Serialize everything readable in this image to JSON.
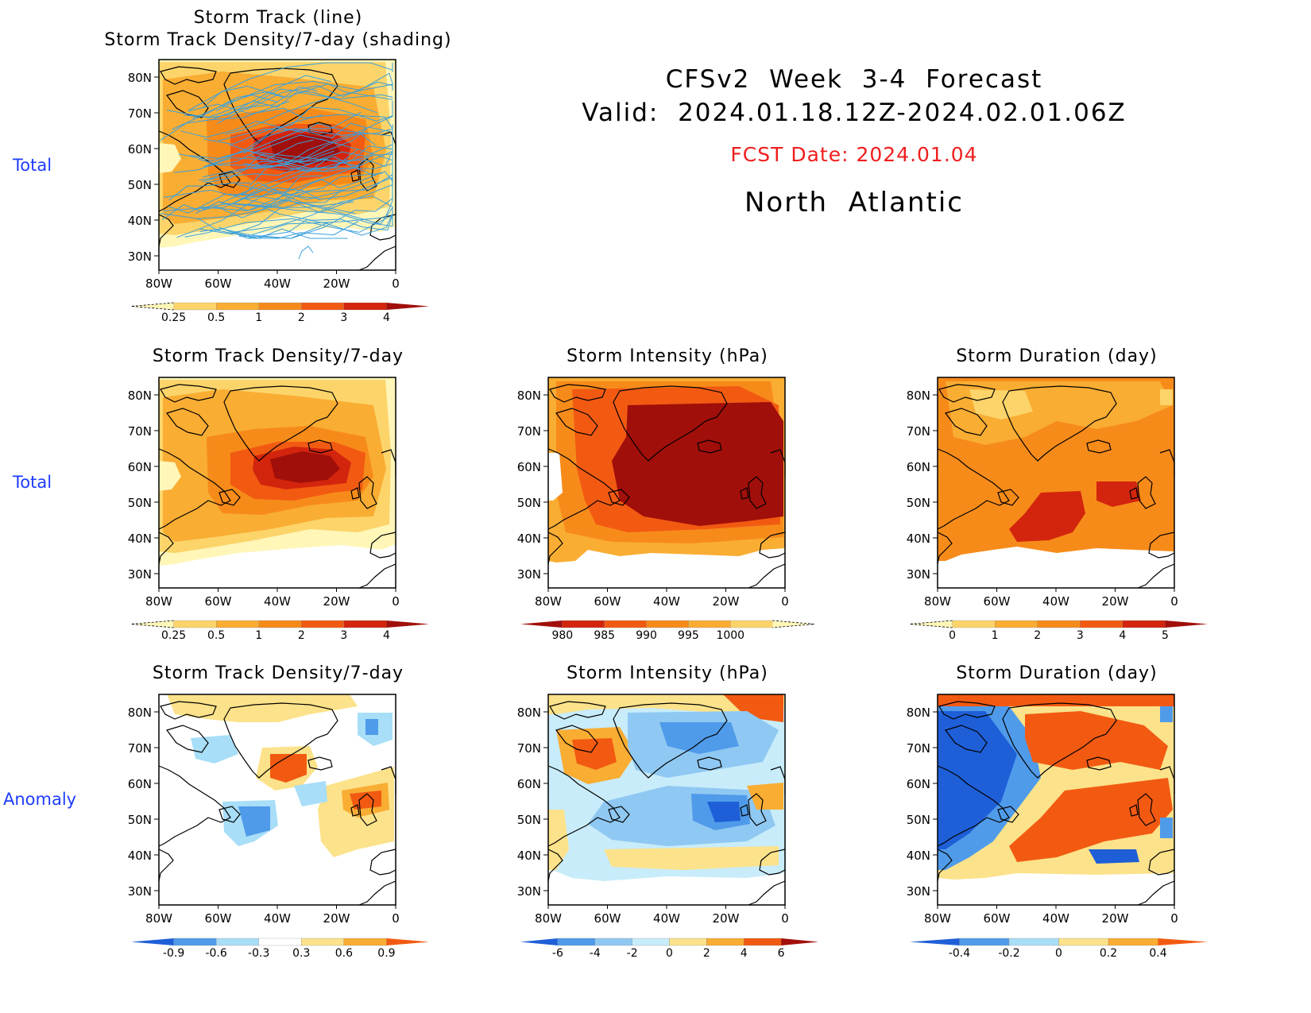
{
  "header": {
    "line1": "CFSv2  Week  3-4  Forecast",
    "line2": "Valid:  2024.01.18.12Z-2024.02.01.06Z",
    "fcst": "FCST Date: 2024.01.04",
    "region": "North  Atlantic"
  },
  "row_labels": {
    "top": "Total",
    "middle": "Total",
    "bottom": "Anomaly"
  },
  "axes": {
    "lat": [
      "80N",
      "70N",
      "60N",
      "50N",
      "40N",
      "30N"
    ],
    "lon": [
      "80W",
      "60W",
      "40W",
      "20W",
      "0"
    ]
  },
  "panels": {
    "p0": {
      "title1": "Storm Track (line)",
      "title2": "Storm Track Density/7-day (shading)"
    },
    "p1": {
      "title": "Storm Track Density/7-day"
    },
    "p2": {
      "title": "Storm Intensity (hPa)"
    },
    "p3": {
      "title": "Storm Duration (day)"
    },
    "p4": {
      "title": "Storm Track Density/7-day"
    },
    "p5": {
      "title": "Storm Intensity (hPa)"
    },
    "p6": {
      "title": "Storm Duration (day)"
    }
  },
  "colorbars": {
    "density": {
      "labels": [
        "0.25",
        "0.5",
        "1",
        "2",
        "3",
        "4"
      ],
      "colors": [
        "#fff6b8",
        "#fcd46a",
        "#f9ad33",
        "#f78b1a",
        "#f25a12",
        "#d3250d",
        "#a10f0a"
      ]
    },
    "intensity": {
      "labels": [
        "980",
        "985",
        "990",
        "995",
        "1000"
      ],
      "colors": [
        "#a10f0a",
        "#d3250d",
        "#f25a12",
        "#f78b1a",
        "#f9ad33",
        "#fcd46a",
        "#fff6b8"
      ]
    },
    "duration": {
      "labels": [
        "0",
        "1",
        "2",
        "3",
        "4",
        "5"
      ],
      "colors": [
        "#fff6b8",
        "#fcd46a",
        "#f9ad33",
        "#f78b1a",
        "#f25a12",
        "#d3250d",
        "#a10f0a"
      ]
    },
    "anom_density": {
      "labels": [
        "-0.9",
        "-0.6",
        "-0.3",
        "0.3",
        "0.6",
        "0.9"
      ],
      "colors": [
        "#1e5fd8",
        "#4f9bea",
        "#a8def7",
        "#ffffff",
        "#fce28a",
        "#f9ad33",
        "#f25a12"
      ]
    },
    "anom_intensity": {
      "labels": [
        "-6",
        "-4",
        "-2",
        "0",
        "2",
        "4",
        "6"
      ],
      "colors": [
        "#1e5fd8",
        "#4f9bea",
        "#8fc8f2",
        "#c8ecfa",
        "#fce28a",
        "#f9ad33",
        "#f25a12",
        "#a10f0a"
      ]
    },
    "anom_duration": {
      "labels": [
        "-0.4",
        "-0.2",
        "0",
        "0.2",
        "0.4"
      ],
      "colors": [
        "#1e5fd8",
        "#4f9bea",
        "#a8def7",
        "#fce28a",
        "#f9ad33",
        "#f25a12"
      ]
    }
  },
  "storm_track_color": "#3aa0dc"
}
